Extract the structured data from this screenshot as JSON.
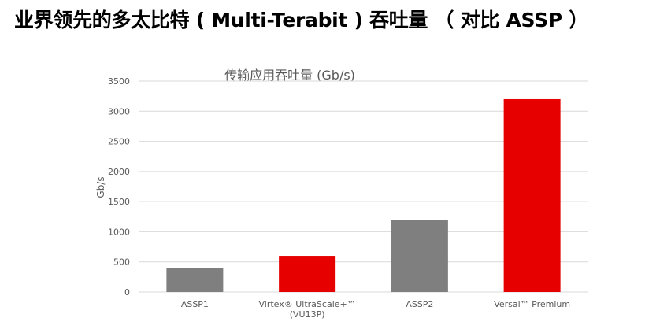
{
  "slide": {
    "title": "业界领先的多太比特 ( Multi-Terabit ) 吞吐量 （ 对比 ASSP ）"
  },
  "colors": {
    "gray_bar": "#7f7f7f",
    "red_bar": "#e60000",
    "grid": "#d9d9d9",
    "text": "#595959"
  },
  "chart_data": {
    "type": "bar",
    "title": "传输应用吞吐量 (Gb/s)",
    "xlabel": "",
    "ylabel": "Gb/s",
    "ylim": [
      0,
      3500
    ],
    "yticks": [
      0,
      500,
      1000,
      1500,
      2000,
      2500,
      3000,
      3500
    ],
    "grid": true,
    "categories": [
      [
        "ASSP1"
      ],
      [
        "Virtex® UltraScale+™",
        "(VU13P)"
      ],
      [
        "ASSP2"
      ],
      [
        "Versal™ Premium"
      ]
    ],
    "values": [
      400,
      600,
      1200,
      3200
    ],
    "bar_colors": [
      "#7f7f7f",
      "#e60000",
      "#7f7f7f",
      "#e60000"
    ]
  }
}
